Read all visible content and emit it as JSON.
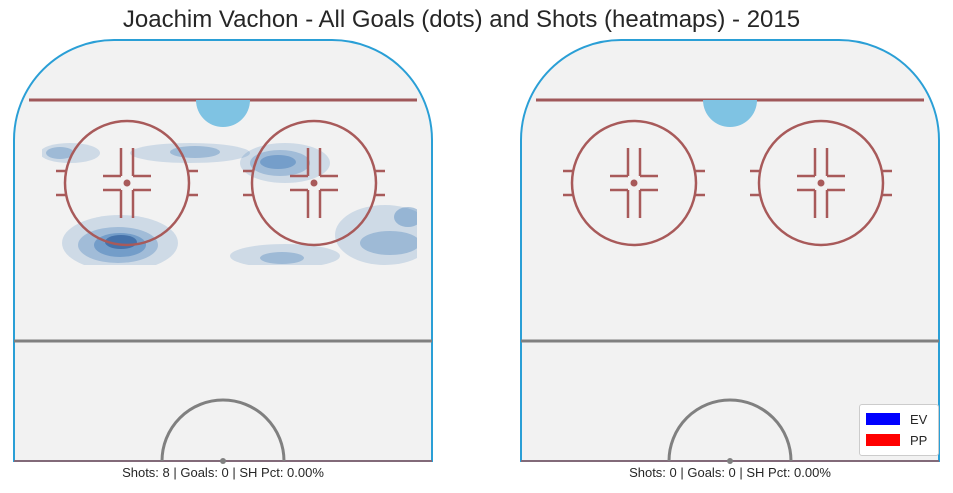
{
  "title": "Joachim Vachon - All Goals (dots) and Shots (heatmaps) - 2015",
  "panels": [
    {
      "caption": "Shots: 8 | Goals: 0 | SH Pct: 0.00%"
    },
    {
      "caption": "Shots: 0 | Goals: 0 | SH Pct: 0.00%"
    }
  ],
  "legend": [
    {
      "label": "EV",
      "color": "#0000ff"
    },
    {
      "label": "PP",
      "color": "#ff0000"
    }
  ],
  "colors": {
    "ice": "#f2f2f2",
    "boards": "#2a9fd6",
    "goal_line": "#a0585a",
    "faceoff": "#a85a5a",
    "crease": "#7fc3e3",
    "blue_line": "#808080",
    "heatmap": "#2f6fb3"
  },
  "chart_data": [
    {
      "type": "heatmap",
      "panel": "left",
      "shots": 8,
      "goals": 0,
      "sh_pct": "0.00%",
      "shot_density_regions": "kde contours in offensive zone",
      "goal_points": []
    },
    {
      "type": "heatmap",
      "panel": "right",
      "shots": 0,
      "goals": 0,
      "sh_pct": "0.00%",
      "goal_points": []
    }
  ]
}
